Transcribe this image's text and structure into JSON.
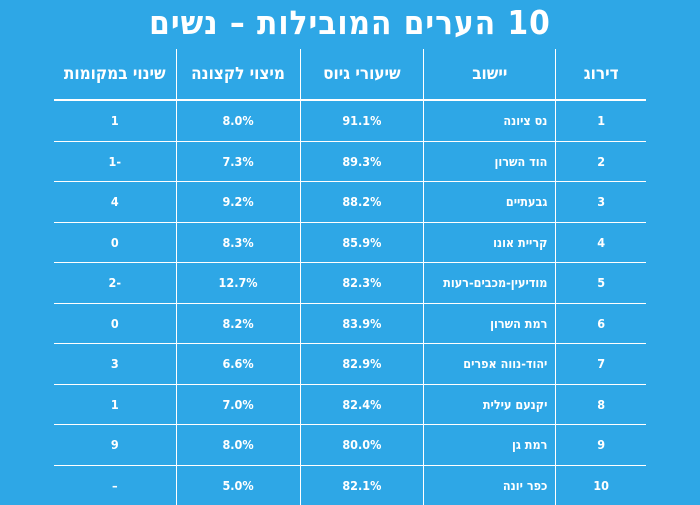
{
  "title": "10 הערים המובילות – נשים",
  "headers": {
    "rank": "דירוג",
    "city": "יישוב",
    "recruitment": "שיעורי גיוס",
    "extremity": "מיצוי לקצונה",
    "change": "שינוי במקומות"
  },
  "rows": [
    {
      "rank": "1",
      "city": "נס ציונה",
      "recruitment": "91.1%",
      "extremity": "8.0%",
      "change": "1"
    },
    {
      "rank": "2",
      "city": "הוד השרון",
      "recruitment": "89.3%",
      "extremity": "7.3%",
      "change": "1-"
    },
    {
      "rank": "3",
      "city": "גבעתיים",
      "recruitment": "88.2%",
      "extremity": "9.2%",
      "change": "4"
    },
    {
      "rank": "4",
      "city": "קריית אונו",
      "recruitment": "85.9%",
      "extremity": "8.3%",
      "change": "0"
    },
    {
      "rank": "5",
      "city": "מודיעין-מכבים-רעות",
      "recruitment": "82.3%",
      "extremity": "12.7%",
      "change": "2-"
    },
    {
      "rank": "6",
      "city": "רמת השרון",
      "recruitment": "83.9%",
      "extremity": "8.2%",
      "change": "0"
    },
    {
      "rank": "7",
      "city": "יהוד-נווה אפרים",
      "recruitment": "82.9%",
      "extremity": "6.6%",
      "change": "3"
    },
    {
      "rank": "8",
      "city": "יקנעם עילית",
      "recruitment": "82.4%",
      "extremity": "7.0%",
      "change": "1"
    },
    {
      "rank": "9",
      "city": "רמת גן",
      "recruitment": "80.0%",
      "extremity": "8.0%",
      "change": "9"
    },
    {
      "rank": "10",
      "city": "כפר יונה",
      "recruitment": "82.1%",
      "extremity": "5.0%",
      "change": "–"
    }
  ]
}
